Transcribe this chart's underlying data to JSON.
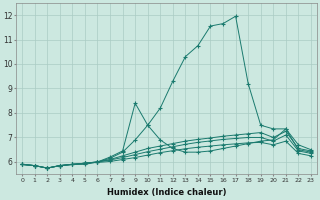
{
  "xlabel": "Humidex (Indice chaleur)",
  "background_color": "#cce8e0",
  "grid_color": "#aaccc4",
  "line_color": "#1a7a6e",
  "xlim": [
    -0.5,
    23.5
  ],
  "ylim": [
    5.5,
    12.5
  ],
  "yticks": [
    6,
    7,
    8,
    9,
    10,
    11,
    12
  ],
  "xticks": [
    0,
    1,
    2,
    3,
    4,
    5,
    6,
    7,
    8,
    9,
    10,
    11,
    12,
    13,
    14,
    15,
    16,
    17,
    18,
    19,
    20,
    21,
    22,
    23
  ],
  "series": [
    {
      "x": [
        0,
        1,
        2,
        3,
        4,
        5,
        6,
        7,
        8,
        9,
        10,
        11,
        12,
        13,
        14,
        15,
        16,
        17,
        18,
        19,
        20,
        21,
        22,
        23
      ],
      "y": [
        5.9,
        5.85,
        5.75,
        5.85,
        5.9,
        5.9,
        6.0,
        6.15,
        6.4,
        6.9,
        7.5,
        8.2,
        9.3,
        10.3,
        10.75,
        11.55,
        11.65,
        11.95,
        9.2,
        7.5,
        7.35,
        7.35,
        6.7,
        6.5
      ]
    },
    {
      "x": [
        0,
        1,
        2,
        3,
        4,
        5,
        6,
        7,
        8,
        9,
        10,
        11,
        12,
        13,
        14,
        15,
        16,
        17,
        18,
        19,
        20,
        21,
        22,
        23
      ],
      "y": [
        5.9,
        5.85,
        5.75,
        5.85,
        5.9,
        5.95,
        6.0,
        6.2,
        6.45,
        8.4,
        7.5,
        6.9,
        6.55,
        6.4,
        6.4,
        6.45,
        6.55,
        6.65,
        6.75,
        6.85,
        6.9,
        7.35,
        6.5,
        6.4
      ]
    },
    {
      "x": [
        0,
        1,
        2,
        3,
        4,
        5,
        6,
        7,
        8,
        9,
        10,
        11,
        12,
        13,
        14,
        15,
        16,
        17,
        18,
        19,
        20,
        21,
        22,
        23
      ],
      "y": [
        5.9,
        5.85,
        5.75,
        5.85,
        5.9,
        5.95,
        6.0,
        6.1,
        6.25,
        6.4,
        6.55,
        6.65,
        6.75,
        6.85,
        6.92,
        6.98,
        7.05,
        7.1,
        7.15,
        7.2,
        7.0,
        7.25,
        6.55,
        6.45
      ]
    },
    {
      "x": [
        0,
        1,
        2,
        3,
        4,
        5,
        6,
        7,
        8,
        9,
        10,
        11,
        12,
        13,
        14,
        15,
        16,
        17,
        18,
        19,
        20,
        21,
        22,
        23
      ],
      "y": [
        5.9,
        5.85,
        5.75,
        5.85,
        5.9,
        5.95,
        6.0,
        6.08,
        6.18,
        6.3,
        6.42,
        6.52,
        6.62,
        6.72,
        6.8,
        6.86,
        6.92,
        6.96,
        7.0,
        7.0,
        6.85,
        7.1,
        6.45,
        6.35
      ]
    },
    {
      "x": [
        0,
        1,
        2,
        3,
        4,
        5,
        6,
        7,
        8,
        9,
        10,
        11,
        12,
        13,
        14,
        15,
        16,
        17,
        18,
        19,
        20,
        21,
        22,
        23
      ],
      "y": [
        5.9,
        5.85,
        5.75,
        5.85,
        5.9,
        5.95,
        5.98,
        6.02,
        6.1,
        6.18,
        6.28,
        6.38,
        6.46,
        6.54,
        6.6,
        6.65,
        6.7,
        6.74,
        6.78,
        6.8,
        6.7,
        6.85,
        6.35,
        6.25
      ]
    }
  ]
}
